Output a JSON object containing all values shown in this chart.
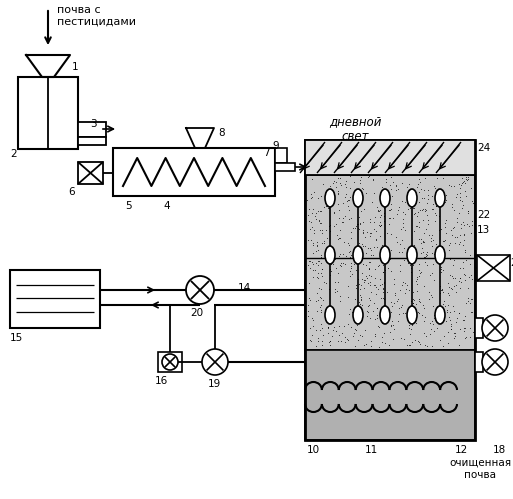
{
  "bg_color": "#ffffff",
  "label_pochva": "почва с\nпестицидами",
  "label_dnevnoy": "дневной\nсвет",
  "label_ochishch": "очищенная\nпочва",
  "figsize": [
    5.13,
    4.99
  ],
  "dpi": 100
}
